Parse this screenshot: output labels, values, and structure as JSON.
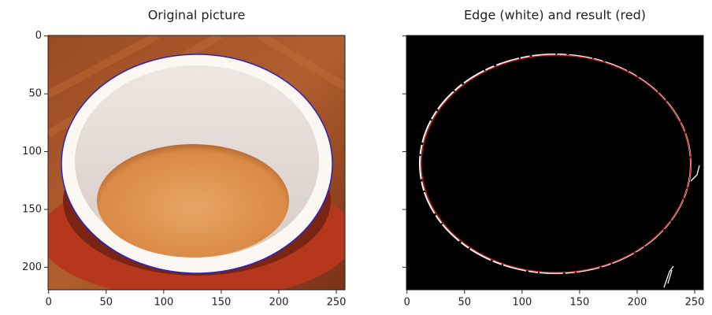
{
  "chart_data": [
    {
      "type": "image",
      "title": "Original picture",
      "xlim": [
        -0.5,
        257.5
      ],
      "ylim": [
        219.5,
        -0.5
      ],
      "xticks": [
        0,
        50,
        100,
        150,
        200,
        250
      ],
      "yticks": [
        0,
        50,
        100,
        150,
        200
      ]
    },
    {
      "type": "image",
      "title": "Edge (white) and result (red)",
      "xlim": [
        -0.5,
        257.5
      ],
      "ylim": [
        219.5,
        -0.5
      ],
      "xticks": [
        0,
        50,
        100,
        150,
        200,
        250
      ]
    }
  ]
}
